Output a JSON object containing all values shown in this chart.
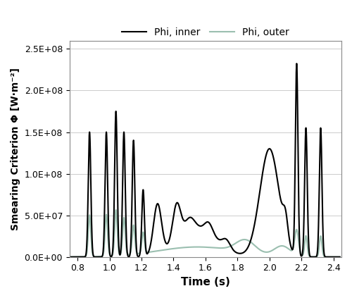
{
  "xlabel": "Time (s)",
  "ylabel": "Smearing Criterion Φ [W·m⁻²]",
  "xlim": [
    0.75,
    2.45
  ],
  "ylim": [
    0,
    260000000.0
  ],
  "xticks": [
    0.8,
    1.0,
    1.2,
    1.4,
    1.6,
    1.8,
    2.0,
    2.2,
    2.4
  ],
  "yticks": [
    0.0,
    50000000.0,
    100000000.0,
    150000000.0,
    200000000.0,
    250000000.0
  ],
  "ytick_labels": [
    "0.0E+00",
    "5.0E+07",
    "1.0E+08",
    "1.5E+08",
    "2.0E+08",
    "2.5E+08"
  ],
  "legend_inner": "Phi, inner",
  "legend_outer": "Phi, outer",
  "inner_color": "#000000",
  "outer_color": "#9bbfb0",
  "inner_lw": 1.5,
  "outer_lw": 1.5,
  "background_color": "#ffffff",
  "grid_color": "#cccccc",
  "figsize": [
    5.0,
    4.23
  ],
  "dpi": 100
}
